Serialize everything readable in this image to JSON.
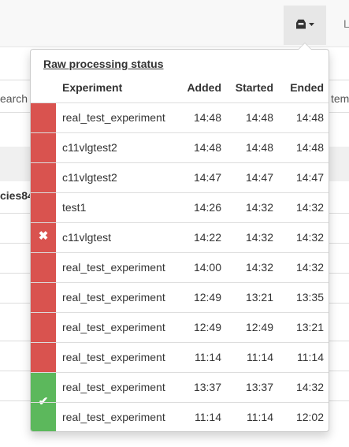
{
  "navbar": {
    "next_item_label": "L"
  },
  "background": {
    "search_left_fragment": "earch",
    "search_right_fragment": "tem",
    "bold_fragment": "cies84"
  },
  "popover": {
    "title": "Raw processing status",
    "columns": {
      "experiment": "Experiment",
      "added": "Added",
      "started": "Started",
      "ended": "Ended"
    },
    "groups": [
      {
        "status": "failed",
        "status_icon": "x-icon",
        "color": "#d9534f",
        "rows": [
          {
            "experiment": "real_test_experiment",
            "added": "14:48",
            "started": "14:48",
            "ended": "14:48"
          },
          {
            "experiment": "c11vlgtest2",
            "added": "14:48",
            "started": "14:48",
            "ended": "14:48"
          },
          {
            "experiment": "c11vlgtest2",
            "added": "14:47",
            "started": "14:47",
            "ended": "14:47"
          },
          {
            "experiment": "test1",
            "added": "14:26",
            "started": "14:32",
            "ended": "14:32"
          },
          {
            "experiment": "c11vlgtest",
            "added": "14:22",
            "started": "14:32",
            "ended": "14:32"
          },
          {
            "experiment": "real_test_experiment",
            "added": "14:00",
            "started": "14:32",
            "ended": "14:32"
          },
          {
            "experiment": "real_test_experiment",
            "added": "12:49",
            "started": "13:21",
            "ended": "13:35"
          },
          {
            "experiment": "real_test_experiment",
            "added": "12:49",
            "started": "12:49",
            "ended": "13:21"
          },
          {
            "experiment": "real_test_experiment",
            "added": "11:14",
            "started": "11:14",
            "ended": "11:14"
          }
        ]
      },
      {
        "status": "success",
        "status_icon": "check-icon",
        "color": "#5cb85c",
        "rows": [
          {
            "experiment": "real_test_experiment",
            "added": "13:37",
            "started": "13:37",
            "ended": "14:32"
          },
          {
            "experiment": "real_test_experiment",
            "added": "11:14",
            "started": "11:14",
            "ended": "12:02"
          }
        ]
      }
    ]
  }
}
